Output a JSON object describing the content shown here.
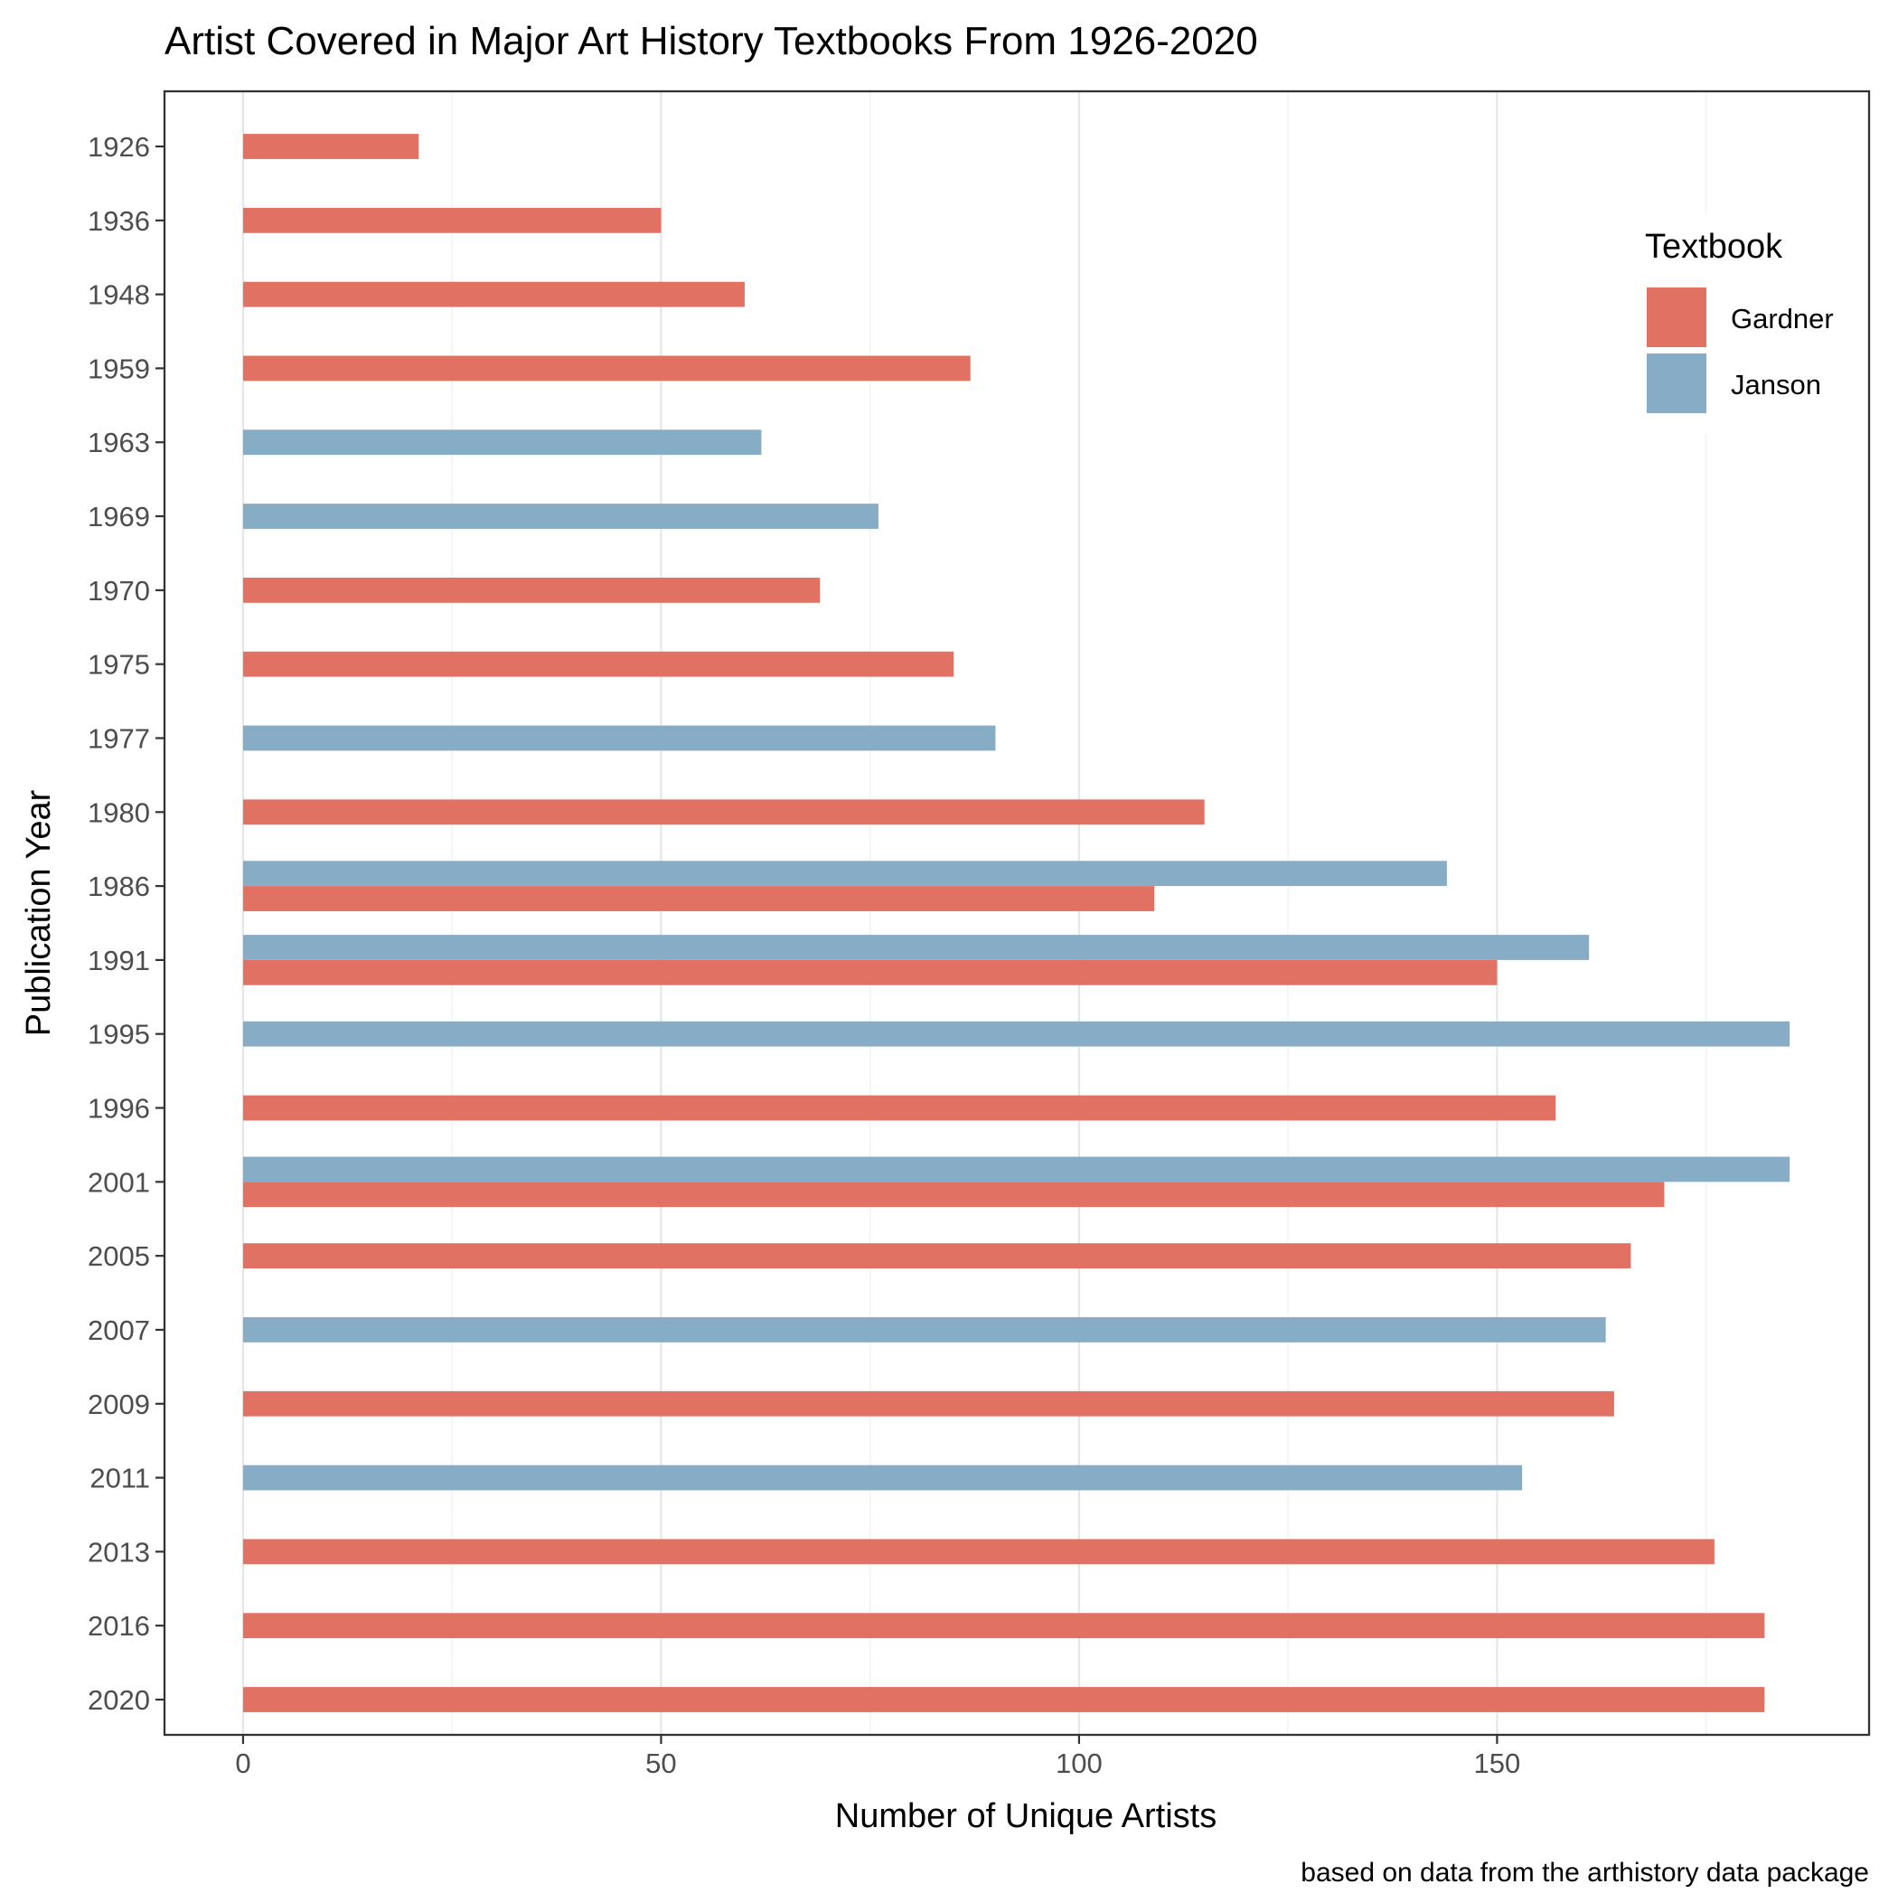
{
  "chart_data": {
    "type": "bar",
    "orientation": "horizontal",
    "title": "Artist Covered in Major Art History Textbooks From 1926-2020",
    "xlabel": "Number of Unique Artists",
    "ylabel": "Publication Year",
    "caption": "based on data from the arthistory data package",
    "xlim": [
      -9.4,
      194.5
    ],
    "x_ticks": [
      0,
      50,
      100,
      150
    ],
    "grid": true,
    "legend": {
      "title": "Textbook",
      "position": "top-right",
      "entries": [
        "Gardner",
        "Janson"
      ]
    },
    "categories": [
      "1926",
      "1936",
      "1948",
      "1959",
      "1963",
      "1969",
      "1970",
      "1975",
      "1977",
      "1980",
      "1986",
      "1991",
      "1995",
      "1996",
      "2001",
      "2005",
      "2007",
      "2009",
      "2011",
      "2013",
      "2016",
      "2020"
    ],
    "series": [
      {
        "name": "Gardner",
        "color": "#E07163",
        "values": [
          21,
          50,
          60,
          87,
          null,
          null,
          69,
          85,
          null,
          115,
          109,
          150,
          null,
          157,
          170,
          166,
          null,
          164,
          null,
          176,
          182,
          182
        ]
      },
      {
        "name": "Janson",
        "color": "#87ACC5",
        "values": [
          null,
          null,
          null,
          null,
          62,
          76,
          null,
          null,
          90,
          null,
          144,
          161,
          185,
          null,
          185,
          null,
          163,
          null,
          153,
          null,
          null,
          null
        ]
      }
    ]
  }
}
